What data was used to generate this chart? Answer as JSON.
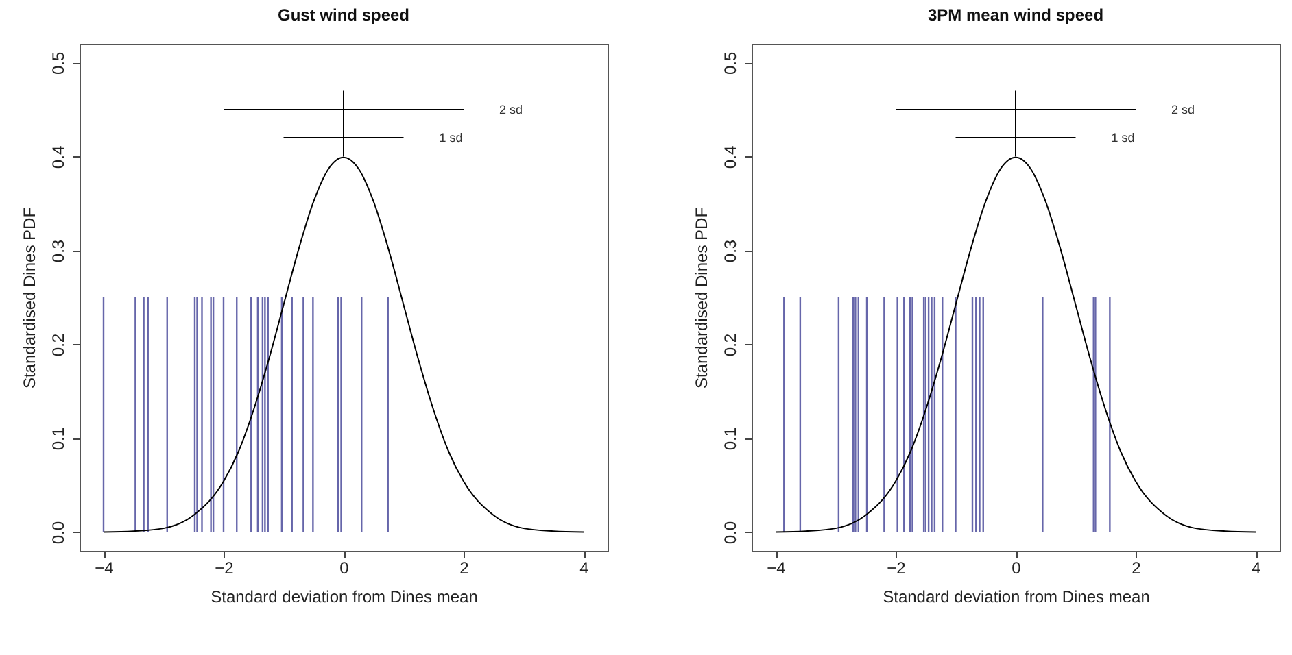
{
  "chart_data": [
    {
      "type": "line",
      "title": "Gust wind speed",
      "xlabel": "Standard deviation from Dines mean",
      "ylabel": "Standardised Dines PDF",
      "xlim": [
        -4.4,
        4.4
      ],
      "xticks": [
        -4,
        -2,
        0,
        2,
        4
      ],
      "ylim": [
        -0.02,
        0.52
      ],
      "yticks": [
        {
          "value": 0,
          "label": "0.0"
        },
        {
          "value": 0.1,
          "label": "0.1"
        },
        {
          "value": 0.2,
          "label": "0.2"
        },
        {
          "value": 0.3,
          "label": "0.3"
        },
        {
          "value": 0.4,
          "label": "0.4"
        },
        {
          "value": 0.5,
          "label": "0.5"
        }
      ],
      "grid": false,
      "series": [
        {
          "type": "bar",
          "color": "#6666aa",
          "x": [
            -4.0,
            -3.47,
            -3.33,
            -3.26,
            -2.94,
            -2.48,
            -2.44,
            -2.36,
            -2.21,
            -2.17,
            -2.0,
            -1.78,
            -1.54,
            -1.43,
            -1.35,
            -1.31,
            -1.26,
            -1.03,
            -0.86,
            -0.67,
            -0.51,
            -0.09,
            -0.04,
            0.3,
            0.74
          ],
          "values": [
            0.25,
            0.25,
            0.25,
            0.25,
            0.25,
            0.25,
            0.25,
            0.25,
            0.25,
            0.25,
            0.25,
            0.25,
            0.25,
            0.25,
            0.25,
            0.25,
            0.25,
            0.25,
            0.25,
            0.25,
            0.25,
            0.25,
            0.25,
            0.25,
            0.25
          ]
        },
        {
          "color": "#000000",
          "x": [
            -4,
            -3.5,
            -3,
            -2.5,
            -2,
            -1.75,
            -1.5,
            -1.25,
            -1,
            -0.75,
            -0.5,
            -0.25,
            0,
            0.25,
            0.5,
            0.75,
            1,
            1.25,
            1.5,
            1.75,
            2,
            2.5,
            3,
            3.5,
            4
          ],
          "values": [
            0.0,
            0.001,
            0.004,
            0.018,
            0.054,
            0.086,
            0.13,
            0.183,
            0.242,
            0.301,
            0.352,
            0.387,
            0.399,
            0.387,
            0.352,
            0.301,
            0.242,
            0.183,
            0.13,
            0.086,
            0.054,
            0.018,
            0.004,
            0.001,
            0.0
          ]
        },
        {
          "name": "2 sd",
          "color": "#000000",
          "x": [
            -2,
            2
          ],
          "values": [
            0.45,
            0.45
          ]
        },
        {
          "name": "1 sd",
          "color": "#000000",
          "x": [
            -1,
            1
          ],
          "values": [
            0.42,
            0.42
          ]
        },
        {
          "color": "#000000",
          "x": [
            0,
            0
          ],
          "values": [
            0.4,
            0.47
          ]
        }
      ]
    },
    {
      "type": "line",
      "title": "3PM mean wind speed",
      "xlabel": "Standard deviation from Dines mean",
      "ylabel": "Standardised Dines PDF",
      "xlim": [
        -4.4,
        4.4
      ],
      "xticks": [
        -4,
        -2,
        0,
        2,
        4
      ],
      "ylim": [
        -0.02,
        0.52
      ],
      "yticks": [
        {
          "value": 0,
          "label": "0.0"
        },
        {
          "value": 0.1,
          "label": "0.1"
        },
        {
          "value": 0.2,
          "label": "0.2"
        },
        {
          "value": 0.3,
          "label": "0.3"
        },
        {
          "value": 0.4,
          "label": "0.4"
        },
        {
          "value": 0.5,
          "label": "0.5"
        }
      ],
      "grid": false,
      "series": [
        {
          "type": "bar",
          "color": "#6666aa",
          "x": [
            -3.86,
            -3.59,
            -2.95,
            -2.71,
            -2.67,
            -2.62,
            -2.48,
            -2.19,
            -1.97,
            -1.86,
            -1.76,
            -1.72,
            -1.53,
            -1.5,
            -1.45,
            -1.4,
            -1.35,
            -1.22,
            -1.0,
            -0.72,
            -0.66,
            -0.6,
            -0.54,
            0.45,
            1.3,
            1.33,
            1.57
          ],
          "values": [
            0.25,
            0.25,
            0.25,
            0.25,
            0.25,
            0.25,
            0.25,
            0.25,
            0.25,
            0.25,
            0.25,
            0.25,
            0.25,
            0.25,
            0.25,
            0.25,
            0.25,
            0.25,
            0.25,
            0.25,
            0.25,
            0.25,
            0.25,
            0.25,
            0.25,
            0.25,
            0.25
          ]
        },
        {
          "color": "#000000",
          "x": [
            -4,
            -3.5,
            -3,
            -2.5,
            -2,
            -1.75,
            -1.5,
            -1.25,
            -1,
            -0.75,
            -0.5,
            -0.25,
            0,
            0.25,
            0.5,
            0.75,
            1,
            1.25,
            1.5,
            1.75,
            2,
            2.5,
            3,
            3.5,
            4
          ],
          "values": [
            0.0,
            0.001,
            0.004,
            0.018,
            0.054,
            0.086,
            0.13,
            0.183,
            0.242,
            0.301,
            0.352,
            0.387,
            0.399,
            0.387,
            0.352,
            0.301,
            0.242,
            0.183,
            0.13,
            0.086,
            0.054,
            0.018,
            0.004,
            0.001,
            0.0
          ]
        },
        {
          "name": "2 sd",
          "color": "#000000",
          "x": [
            -2,
            2
          ],
          "values": [
            0.45,
            0.45
          ]
        },
        {
          "name": "1 sd",
          "color": "#000000",
          "x": [
            -1,
            1
          ],
          "values": [
            0.42,
            0.42
          ]
        },
        {
          "color": "#000000",
          "x": [
            0,
            0
          ],
          "values": [
            0.4,
            0.47
          ]
        }
      ]
    }
  ]
}
